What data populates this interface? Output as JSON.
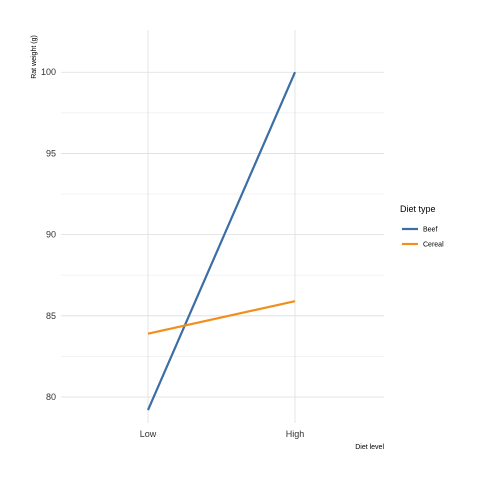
{
  "chart_data": {
    "type": "line",
    "xlabel": "Diet level",
    "ylabel": "Rat weight (g)",
    "categories": [
      "Low",
      "High"
    ],
    "ylim": [
      78.4,
      102.6
    ],
    "yticks": [
      80,
      85,
      90,
      95,
      100
    ],
    "grid": true,
    "legend": {
      "title": "Diet type",
      "placement": "right",
      "entries": [
        "Beef",
        "Cereal"
      ]
    },
    "series": [
      {
        "name": "Beef",
        "color": "#3b6ea5",
        "values": [
          79.2,
          100.0
        ]
      },
      {
        "name": "Cereal",
        "color": "#f28e1c",
        "values": [
          83.9,
          85.9
        ]
      }
    ]
  }
}
